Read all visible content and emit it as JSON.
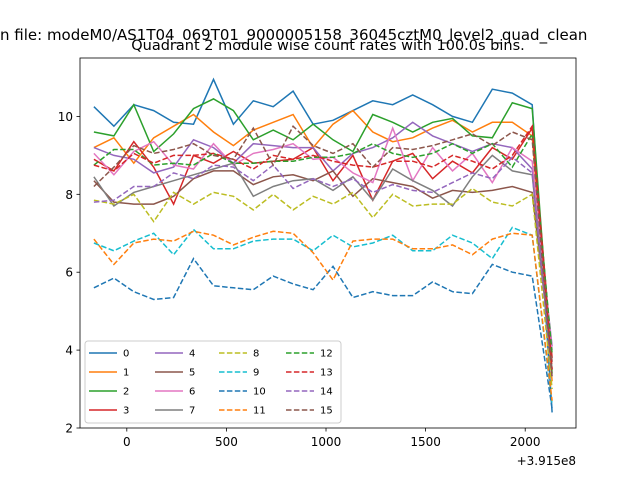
{
  "chart_data": {
    "type": "line",
    "suptitle": "n file: modeM0/AS1T04_069T01_9000005158_36045cztM0_level2_quad_clean",
    "title": "Quadrant 2 module wise count rates with 100.0s bins.",
    "xlabel": "",
    "ylabel": "",
    "x_offset_label": "+3.915e8",
    "xlim": [
      -235,
      2255
    ],
    "ylim": [
      2,
      11.5
    ],
    "x_ticks": [
      0,
      500,
      1000,
      1500,
      2000
    ],
    "x_tick_labels": [
      "0",
      "500",
      "1000",
      "1500",
      "2000"
    ],
    "y_ticks": [
      2,
      4,
      6,
      8,
      10
    ],
    "y_tick_labels": [
      "2",
      "4",
      "6",
      "8",
      "10"
    ],
    "legend_position": "lower-left",
    "grid": false,
    "x": [
      -165,
      -65,
      35,
      135,
      235,
      335,
      435,
      535,
      635,
      735,
      835,
      935,
      1035,
      1135,
      1235,
      1335,
      1435,
      1535,
      1635,
      1735,
      1835,
      1935,
      2035,
      2135
    ],
    "series": [
      {
        "name": "0",
        "color": "#1f77b4",
        "dash": "solid",
        "values": [
          10.25,
          9.75,
          10.3,
          10.15,
          9.85,
          9.8,
          10.95,
          9.8,
          10.4,
          10.25,
          10.65,
          9.8,
          9.9,
          10.15,
          10.4,
          10.3,
          10.55,
          10.3,
          10.0,
          9.85,
          10.7,
          10.6,
          10.3,
          2.4
        ]
      },
      {
        "name": "1",
        "color": "#ff7f0e",
        "dash": "solid",
        "values": [
          9.2,
          9.45,
          8.8,
          9.45,
          9.75,
          10.05,
          9.6,
          9.25,
          9.65,
          9.85,
          10.05,
          9.2,
          9.8,
          10.15,
          9.6,
          9.35,
          9.45,
          9.7,
          9.9,
          9.6,
          9.85,
          9.85,
          9.5,
          3.2
        ]
      },
      {
        "name": "2",
        "color": "#2ca02c",
        "dash": "solid",
        "values": [
          9.6,
          9.5,
          10.3,
          9.1,
          9.55,
          10.2,
          10.45,
          10.15,
          9.4,
          9.65,
          9.4,
          9.8,
          9.4,
          9.1,
          10.05,
          9.85,
          9.6,
          9.85,
          9.95,
          9.5,
          9.45,
          10.35,
          10.2,
          3.4
        ]
      },
      {
        "name": "3",
        "color": "#d62728",
        "dash": "solid",
        "values": [
          8.9,
          8.6,
          9.35,
          8.7,
          7.75,
          9.0,
          8.8,
          9.1,
          8.8,
          8.85,
          8.9,
          9.2,
          8.35,
          9.0,
          7.85,
          8.85,
          9.05,
          8.4,
          8.85,
          8.55,
          9.2,
          8.9,
          9.7,
          3.8
        ]
      },
      {
        "name": "4",
        "color": "#9467bd",
        "dash": "solid",
        "values": [
          9.2,
          9.0,
          8.9,
          8.55,
          8.7,
          9.4,
          9.2,
          8.8,
          9.3,
          9.25,
          9.2,
          9.2,
          8.6,
          9.05,
          9.2,
          9.45,
          9.85,
          9.5,
          9.3,
          9.1,
          9.3,
          9.2,
          8.65,
          4.1
        ]
      },
      {
        "name": "5",
        "color": "#8c564b",
        "dash": "solid",
        "values": [
          8.35,
          7.8,
          7.75,
          7.75,
          7.95,
          8.4,
          8.6,
          8.6,
          8.25,
          8.45,
          8.5,
          8.35,
          8.6,
          7.95,
          8.4,
          8.3,
          8.2,
          7.9,
          8.1,
          8.05,
          8.1,
          8.2,
          8.05,
          3.7
        ]
      },
      {
        "name": "6",
        "color": "#e377c2",
        "dash": "solid",
        "values": [
          9.05,
          8.5,
          9.1,
          9.35,
          8.75,
          8.65,
          9.3,
          8.75,
          9.05,
          9.15,
          9.3,
          8.9,
          8.95,
          8.55,
          8.3,
          9.7,
          8.35,
          9.2,
          8.6,
          9.05,
          8.3,
          9.2,
          8.85,
          4.0
        ]
      },
      {
        "name": "7",
        "color": "#7f7f7f",
        "dash": "solid",
        "values": [
          8.45,
          7.7,
          8.05,
          8.2,
          8.35,
          8.5,
          8.65,
          8.8,
          7.95,
          8.2,
          8.35,
          8.4,
          8.1,
          8.45,
          7.85,
          8.65,
          8.35,
          8.1,
          7.7,
          8.45,
          9.0,
          8.6,
          8.5,
          3.5
        ]
      },
      {
        "name": "8",
        "color": "#bcbd22",
        "dash": "dashed",
        "values": [
          7.85,
          7.75,
          8.0,
          7.3,
          8.05,
          7.75,
          8.05,
          7.95,
          7.6,
          8.0,
          7.6,
          7.95,
          7.75,
          8.05,
          7.4,
          8.0,
          7.7,
          7.75,
          7.75,
          8.15,
          7.8,
          7.7,
          8.0,
          3.0
        ]
      },
      {
        "name": "9",
        "color": "#17becf",
        "dash": "dashed",
        "values": [
          6.75,
          6.55,
          6.8,
          7.0,
          6.45,
          7.1,
          6.6,
          6.6,
          6.8,
          6.85,
          6.85,
          6.55,
          6.95,
          6.65,
          6.75,
          6.95,
          6.55,
          6.55,
          6.95,
          6.75,
          6.35,
          7.15,
          6.95,
          2.6
        ]
      },
      {
        "name": "10",
        "color": "#1f77b4",
        "dash": "dashed",
        "values": [
          5.6,
          5.85,
          5.5,
          5.3,
          5.35,
          6.35,
          5.65,
          5.6,
          5.55,
          5.9,
          5.7,
          5.55,
          6.15,
          5.35,
          5.5,
          5.4,
          5.4,
          5.75,
          5.5,
          5.45,
          6.2,
          6.0,
          5.9,
          2.5
        ]
      },
      {
        "name": "11",
        "color": "#ff7f0e",
        "dash": "dashed",
        "values": [
          6.85,
          6.2,
          6.75,
          6.85,
          6.8,
          7.05,
          6.95,
          6.7,
          6.9,
          7.05,
          7.0,
          6.5,
          5.8,
          6.8,
          6.85,
          6.85,
          6.6,
          6.6,
          6.7,
          6.45,
          6.85,
          7.0,
          6.95,
          2.7
        ]
      },
      {
        "name": "12",
        "color": "#2ca02c",
        "dash": "dashed",
        "values": [
          8.75,
          9.15,
          9.15,
          8.75,
          8.8,
          8.75,
          9.05,
          8.8,
          8.8,
          8.85,
          8.85,
          8.95,
          8.95,
          9.05,
          9.3,
          9.05,
          8.95,
          9.05,
          9.3,
          9.05,
          9.3,
          8.7,
          9.55,
          3.9
        ]
      },
      {
        "name": "13",
        "color": "#d62728",
        "dash": "dashed",
        "values": [
          8.75,
          8.6,
          9.05,
          8.8,
          9.0,
          9.0,
          9.05,
          8.9,
          8.65,
          9.0,
          8.9,
          9.0,
          8.85,
          8.75,
          8.7,
          8.85,
          8.85,
          8.7,
          9.0,
          8.85,
          8.65,
          9.0,
          9.75,
          3.5
        ]
      },
      {
        "name": "14",
        "color": "#9467bd",
        "dash": "dashed",
        "values": [
          7.8,
          7.85,
          8.2,
          8.2,
          8.55,
          8.4,
          8.75,
          8.7,
          8.35,
          8.75,
          8.15,
          8.4,
          8.2,
          8.4,
          8.05,
          8.25,
          8.1,
          8.05,
          8.3,
          8.55,
          8.4,
          8.95,
          8.55,
          3.3
        ]
      },
      {
        "name": "15",
        "color": "#8c564b",
        "dash": "dashed",
        "values": [
          8.2,
          8.7,
          9.25,
          9.05,
          9.15,
          9.3,
          9.0,
          8.9,
          9.7,
          8.75,
          9.75,
          9.25,
          9.05,
          9.3,
          8.7,
          9.2,
          9.15,
          9.25,
          9.4,
          9.55,
          9.25,
          9.6,
          9.4,
          3.3
        ]
      }
    ]
  }
}
